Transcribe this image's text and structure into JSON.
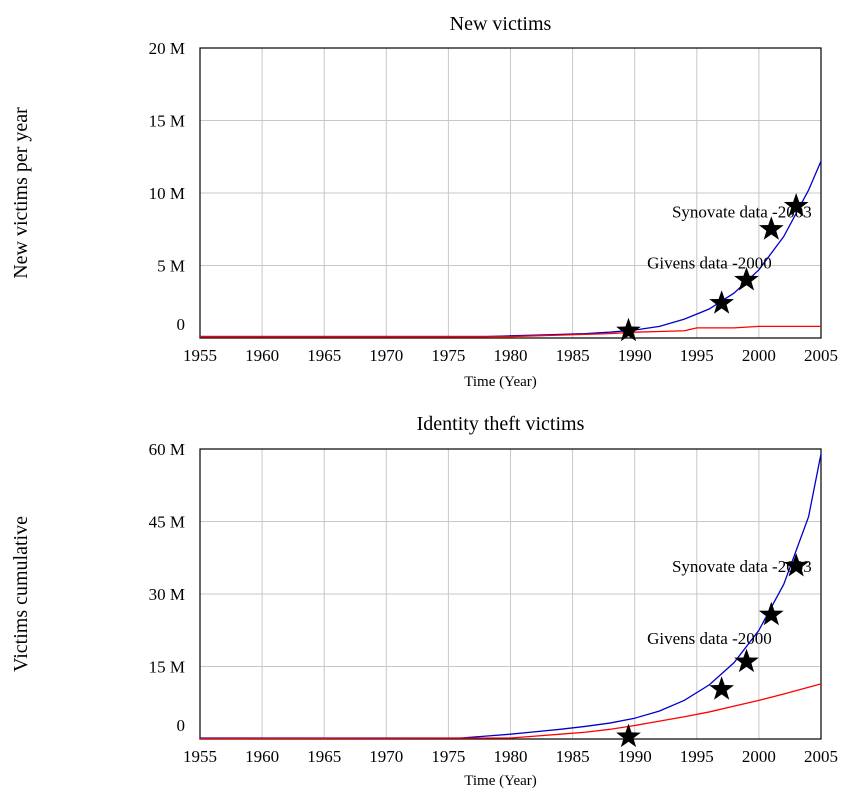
{
  "chart_data": [
    {
      "type": "line",
      "title": "New victims",
      "ylabel": "New victims per year",
      "xlabel": "Time (Year)",
      "xlim": [
        1955,
        2005
      ],
      "ylim": [
        0,
        20000000
      ],
      "x_ticks": [
        "1955",
        "1960",
        "1965",
        "1970",
        "1975",
        "1980",
        "1985",
        "1990",
        "1995",
        "2000",
        "2005"
      ],
      "y_ticks": [
        {
          "value": 0,
          "label": "0"
        },
        {
          "value": 5000000,
          "label": "5 M"
        },
        {
          "value": 10000000,
          "label": "10 M"
        },
        {
          "value": 15000000,
          "label": "15 M"
        },
        {
          "value": 20000000,
          "label": "20 M"
        }
      ],
      "grid": true,
      "series": [
        {
          "color": "#0000cc",
          "x": [
            1955,
            1978,
            1980,
            1982,
            1984,
            1986,
            1988,
            1990,
            1992,
            1994,
            1996,
            1998,
            2000,
            2002,
            2004,
            2005
          ],
          "y": [
            100000,
            100000,
            150000,
            200000,
            250000,
            300000,
            400000,
            550000,
            800000,
            1300000,
            2000000,
            3100000,
            4700000,
            7000000,
            10200000,
            12200000
          ]
        },
        {
          "color": "#ff0000",
          "x": [
            1955,
            1980,
            1982,
            1984,
            1986,
            1988,
            1990,
            1992,
            1994,
            1995,
            1996,
            1998,
            2000,
            2002,
            2004,
            2005
          ],
          "y": [
            100000,
            100000,
            150000,
            200000,
            250000,
            300000,
            400000,
            450000,
            500000,
            700000,
            700000,
            700000,
            800000,
            800000,
            800000,
            800000
          ]
        }
      ],
      "markers": [
        {
          "x": 1989.5,
          "y": 500000
        },
        {
          "x": 1997,
          "y": 2400000
        },
        {
          "x": 1999,
          "y": 4000000
        },
        {
          "x": 2001,
          "y": 7500000
        },
        {
          "x": 2003,
          "y": 9100000
        }
      ],
      "annotations": [
        {
          "text": "Synovate data -2003",
          "x": 1993,
          "y": 8300000
        },
        {
          "text": "Givens data -2000",
          "x": 1991,
          "y": 4800000
        }
      ]
    },
    {
      "type": "line",
      "title": "Identity theft victims",
      "ylabel": "Victims cumulative",
      "xlabel": "Time (Year)",
      "xlim": [
        1955,
        2005
      ],
      "ylim": [
        0,
        60000000
      ],
      "x_ticks": [
        "1955",
        "1960",
        "1965",
        "1970",
        "1975",
        "1980",
        "1985",
        "1990",
        "1995",
        "2000",
        "2005"
      ],
      "y_ticks": [
        {
          "value": 0,
          "label": "0"
        },
        {
          "value": 15000000,
          "label": "15 M"
        },
        {
          "value": 30000000,
          "label": "30 M"
        },
        {
          "value": 45000000,
          "label": "45 M"
        },
        {
          "value": 60000000,
          "label": "60 M"
        }
      ],
      "grid": true,
      "series": [
        {
          "color": "#0000cc",
          "x": [
            1955,
            1976,
            1978,
            1980,
            1982,
            1984,
            1986,
            1988,
            1990,
            1992,
            1994,
            1996,
            1998,
            2000,
            2002,
            2004,
            2005
          ],
          "y": [
            200000,
            200000,
            600000,
            1000000,
            1500000,
            2000000,
            2600000,
            3300000,
            4300000,
            5800000,
            8000000,
            11200000,
            15800000,
            22500000,
            32000000,
            46000000,
            59000000
          ]
        },
        {
          "color": "#ff0000",
          "x": [
            1955,
            1980,
            1982,
            1984,
            1986,
            1988,
            1990,
            1992,
            1994,
            1996,
            1998,
            2000,
            2002,
            2004,
            2005
          ],
          "y": [
            100000,
            200000,
            600000,
            1000000,
            1400000,
            2000000,
            2800000,
            3700000,
            4600000,
            5600000,
            6800000,
            8000000,
            9300000,
            10700000,
            11400000
          ]
        }
      ],
      "markers": [
        {
          "x": 1989.5,
          "y": 500000
        },
        {
          "x": 1997,
          "y": 10300000
        },
        {
          "x": 1999,
          "y": 16000000
        },
        {
          "x": 2001,
          "y": 25700000
        },
        {
          "x": 2003,
          "y": 35800000
        }
      ],
      "annotations": [
        {
          "text": "Synovate data -2003",
          "x": 1993,
          "y": 34600000
        },
        {
          "text": "Givens data -2000",
          "x": 1991,
          "y": 19700000
        }
      ]
    }
  ]
}
